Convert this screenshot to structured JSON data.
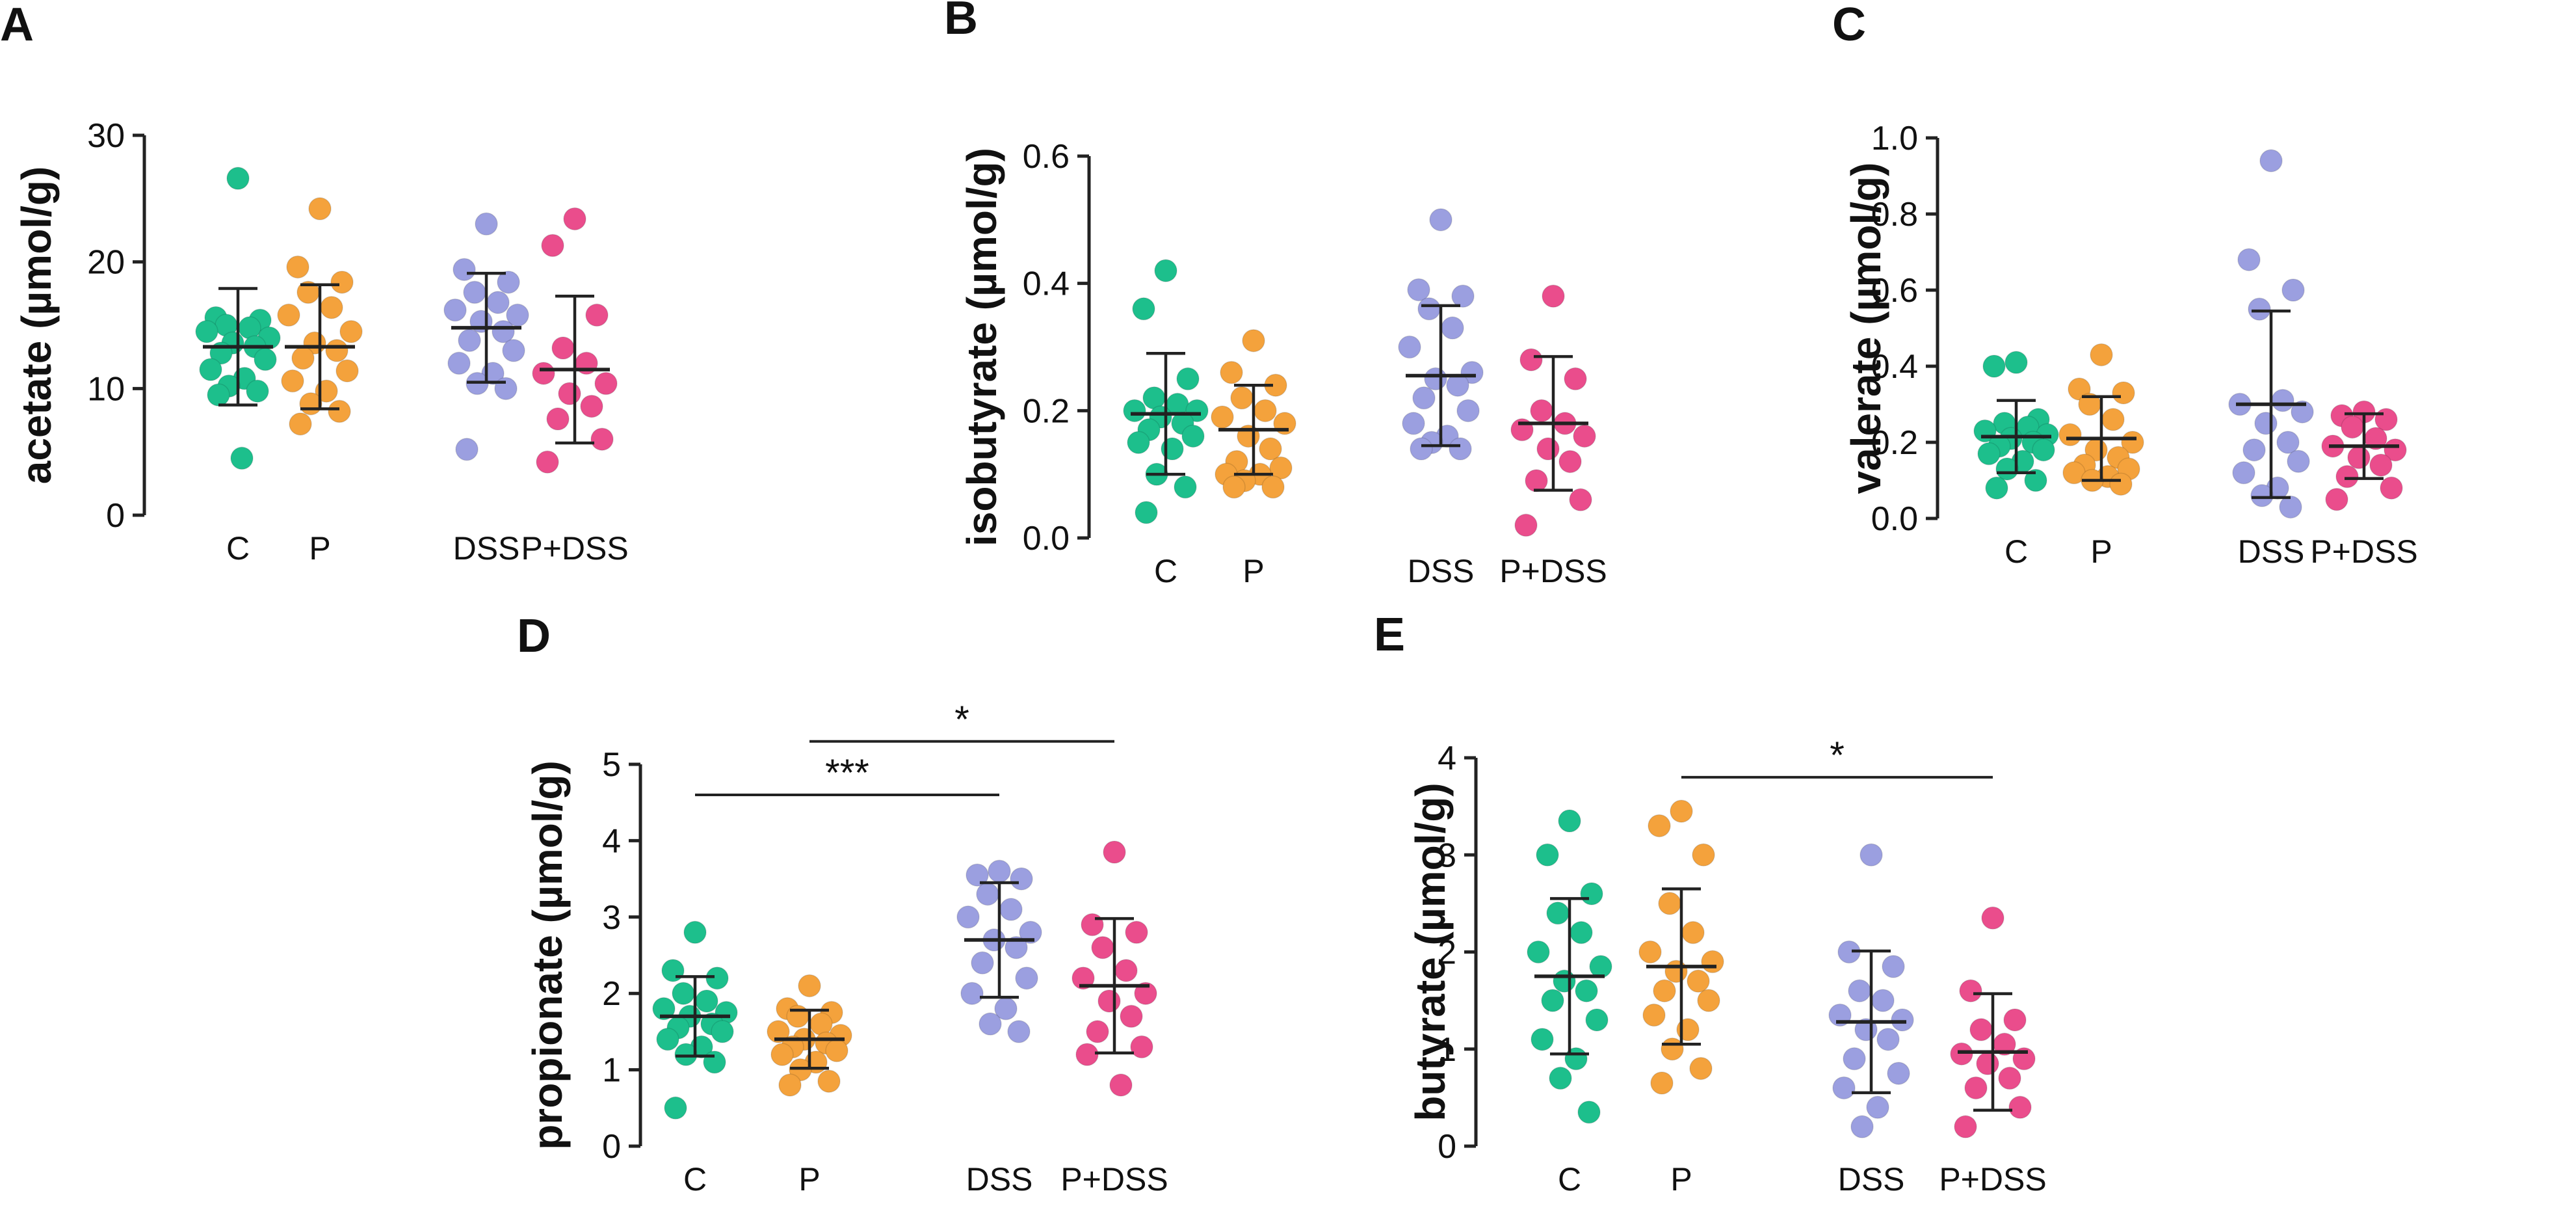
{
  "chart_data": [
    {
      "panel": "A",
      "type": "scatter",
      "ylabel": "acetate (µmol/g)",
      "categories": [
        "C",
        "P",
        "DSS",
        "P+DSS"
      ],
      "ylim": [
        0,
        30
      ],
      "yticks": [
        "0",
        "10",
        "20",
        "30"
      ],
      "groups": [
        {
          "name": "C",
          "color": "#1dbf8c",
          "mean": 13.3,
          "sd": 4.6,
          "values": [
            26.6,
            15.6,
            15.4,
            15.0,
            14.8,
            14.5,
            14.0,
            13.6,
            13.3,
            12.8,
            12.3,
            11.5,
            10.8,
            10.2,
            9.8,
            9.5,
            4.5
          ]
        },
        {
          "name": "P",
          "color": "#f4a23c",
          "mean": 13.3,
          "sd": 4.9,
          "values": [
            24.2,
            19.6,
            18.4,
            17.6,
            16.4,
            15.8,
            14.5,
            13.6,
            13.0,
            12.4,
            11.4,
            10.6,
            9.8,
            8.8,
            8.2,
            7.2
          ]
        },
        {
          "name": "DSS",
          "color": "#9b9fe0",
          "mean": 14.8,
          "sd": 4.3,
          "values": [
            23.0,
            19.4,
            18.4,
            17.6,
            16.8,
            16.2,
            15.8,
            15.3,
            14.5,
            13.8,
            13.0,
            12.0,
            11.2,
            10.4,
            10.0,
            5.2
          ]
        },
        {
          "name": "P+DSS",
          "color": "#ea4d8c",
          "mean": 11.5,
          "sd": 5.8,
          "values": [
            23.4,
            21.3,
            15.8,
            13.2,
            12.0,
            11.2,
            10.4,
            9.6,
            8.6,
            7.6,
            6.0,
            4.2
          ]
        }
      ],
      "significance": []
    },
    {
      "panel": "B",
      "type": "scatter",
      "ylabel": "isobutyrate (µmol/g)",
      "categories": [
        "C",
        "P",
        "DSS",
        "P+DSS"
      ],
      "ylim": [
        0,
        0.6
      ],
      "yticks": [
        "0.0",
        "0.2",
        "0.4",
        "0.6"
      ],
      "groups": [
        {
          "name": "C",
          "color": "#1dbf8c",
          "mean": 0.195,
          "sd": 0.095,
          "values": [
            0.42,
            0.36,
            0.25,
            0.22,
            0.21,
            0.2,
            0.2,
            0.19,
            0.18,
            0.17,
            0.16,
            0.15,
            0.14,
            0.1,
            0.08,
            0.04
          ]
        },
        {
          "name": "P",
          "color": "#f4a23c",
          "mean": 0.17,
          "sd": 0.07,
          "values": [
            0.31,
            0.26,
            0.24,
            0.22,
            0.2,
            0.19,
            0.18,
            0.16,
            0.14,
            0.12,
            0.11,
            0.1,
            0.1,
            0.09,
            0.08,
            0.08
          ]
        },
        {
          "name": "DSS",
          "color": "#9b9fe0",
          "mean": 0.255,
          "sd": 0.11,
          "values": [
            0.5,
            0.39,
            0.38,
            0.36,
            0.33,
            0.3,
            0.26,
            0.25,
            0.24,
            0.22,
            0.2,
            0.18,
            0.16,
            0.15,
            0.14,
            0.14
          ]
        },
        {
          "name": "P+DSS",
          "color": "#ea4d8c",
          "mean": 0.18,
          "sd": 0.105,
          "values": [
            0.38,
            0.28,
            0.25,
            0.2,
            0.18,
            0.17,
            0.16,
            0.14,
            0.12,
            0.09,
            0.06,
            0.02
          ]
        }
      ],
      "significance": []
    },
    {
      "panel": "C",
      "type": "scatter",
      "ylabel": "valerate (µmol/g)",
      "categories": [
        "C",
        "P",
        "DSS",
        "P+DSS"
      ],
      "ylim": [
        0,
        1.0
      ],
      "yticks": [
        "0.0",
        "0.2",
        "0.4",
        "0.6",
        "0.8",
        "1.0"
      ],
      "groups": [
        {
          "name": "C",
          "color": "#1dbf8c",
          "mean": 0.215,
          "sd": 0.095,
          "values": [
            0.41,
            0.4,
            0.26,
            0.25,
            0.24,
            0.23,
            0.22,
            0.21,
            0.2,
            0.19,
            0.18,
            0.17,
            0.15,
            0.13,
            0.1,
            0.08
          ]
        },
        {
          "name": "P",
          "color": "#f4a23c",
          "mean": 0.21,
          "sd": 0.11,
          "values": [
            0.43,
            0.34,
            0.33,
            0.3,
            0.26,
            0.22,
            0.2,
            0.18,
            0.16,
            0.14,
            0.13,
            0.12,
            0.11,
            0.1,
            0.09
          ]
        },
        {
          "name": "DSS",
          "color": "#9b9fe0",
          "mean": 0.3,
          "sd": 0.245,
          "values": [
            0.94,
            0.68,
            0.6,
            0.55,
            0.31,
            0.3,
            0.28,
            0.25,
            0.2,
            0.18,
            0.15,
            0.12,
            0.08,
            0.06,
            0.03
          ]
        },
        {
          "name": "P+DSS",
          "color": "#ea4d8c",
          "mean": 0.19,
          "sd": 0.085,
          "values": [
            0.28,
            0.27,
            0.26,
            0.24,
            0.21,
            0.19,
            0.18,
            0.16,
            0.14,
            0.11,
            0.08,
            0.05
          ]
        }
      ],
      "significance": []
    },
    {
      "panel": "D",
      "type": "scatter",
      "ylabel": "propionate (µmol/g)",
      "categories": [
        "C",
        "P",
        "DSS",
        "P+DSS"
      ],
      "ylim": [
        0,
        5
      ],
      "yticks": [
        "0",
        "1",
        "2",
        "3",
        "4",
        "5"
      ],
      "groups": [
        {
          "name": "C",
          "color": "#1dbf8c",
          "mean": 1.7,
          "sd": 0.52,
          "values": [
            2.8,
            2.3,
            2.2,
            2.0,
            1.9,
            1.8,
            1.75,
            1.7,
            1.6,
            1.55,
            1.5,
            1.4,
            1.3,
            1.2,
            1.1,
            0.5
          ]
        },
        {
          "name": "P",
          "color": "#f4a23c",
          "mean": 1.4,
          "sd": 0.38,
          "values": [
            2.1,
            1.8,
            1.75,
            1.7,
            1.6,
            1.5,
            1.45,
            1.4,
            1.35,
            1.3,
            1.25,
            1.2,
            1.1,
            1.0,
            0.85,
            0.8
          ]
        },
        {
          "name": "DSS",
          "color": "#9b9fe0",
          "mean": 2.7,
          "sd": 0.75,
          "values": [
            3.6,
            3.55,
            3.5,
            3.3,
            3.1,
            3.0,
            2.8,
            2.7,
            2.6,
            2.4,
            2.2,
            2.0,
            1.8,
            1.6,
            1.5
          ]
        },
        {
          "name": "P+DSS",
          "color": "#ea4d8c",
          "mean": 2.1,
          "sd": 0.88,
          "values": [
            3.85,
            2.9,
            2.8,
            2.6,
            2.3,
            2.2,
            2.0,
            1.9,
            1.7,
            1.5,
            1.3,
            1.2,
            0.8
          ]
        }
      ],
      "significance": [
        {
          "from": "C",
          "to": "DSS",
          "label": "***",
          "y": 4.6
        },
        {
          "from": "P",
          "to": "P+DSS",
          "label": "*",
          "y": 5.3
        }
      ]
    },
    {
      "panel": "E",
      "type": "scatter",
      "ylabel": "butyrate (µmol/g)",
      "categories": [
        "C",
        "P",
        "DSS",
        "P+DSS"
      ],
      "ylim": [
        0,
        4
      ],
      "yticks": [
        "0",
        "1",
        "2",
        "3",
        "4"
      ],
      "groups": [
        {
          "name": "C",
          "color": "#1dbf8c",
          "mean": 1.75,
          "sd": 0.8,
          "values": [
            3.35,
            3.0,
            2.6,
            2.4,
            2.2,
            2.0,
            1.85,
            1.7,
            1.6,
            1.5,
            1.3,
            1.1,
            0.9,
            0.7,
            0.35
          ]
        },
        {
          "name": "P",
          "color": "#f4a23c",
          "mean": 1.85,
          "sd": 0.8,
          "values": [
            3.45,
            3.3,
            3.0,
            2.5,
            2.2,
            2.0,
            1.9,
            1.8,
            1.7,
            1.6,
            1.5,
            1.35,
            1.2,
            1.0,
            0.8,
            0.65
          ]
        },
        {
          "name": "DSS",
          "color": "#9b9fe0",
          "mean": 1.28,
          "sd": 0.73,
          "values": [
            3.0,
            2.0,
            1.85,
            1.6,
            1.5,
            1.35,
            1.3,
            1.2,
            1.1,
            0.9,
            0.75,
            0.6,
            0.4,
            0.2
          ]
        },
        {
          "name": "P+DSS",
          "color": "#ea4d8c",
          "mean": 0.97,
          "sd": 0.6,
          "values": [
            2.35,
            1.6,
            1.3,
            1.2,
            1.05,
            0.95,
            0.9,
            0.85,
            0.7,
            0.6,
            0.4,
            0.2
          ]
        }
      ],
      "significance": [
        {
          "from": "P",
          "to": "P+DSS",
          "label": "*",
          "y": 3.8
        }
      ]
    }
  ]
}
